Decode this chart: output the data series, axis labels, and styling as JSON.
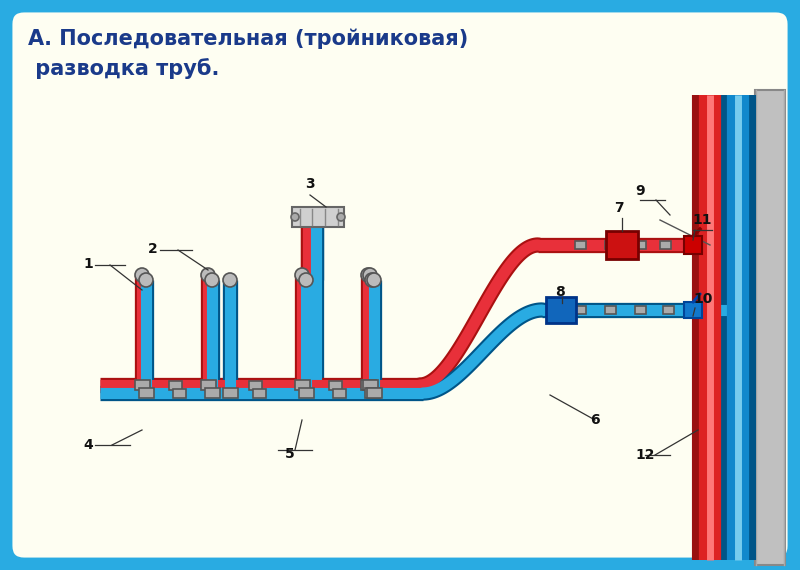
{
  "title_line1": "А. Последовательная (тройниковая)",
  "title_line2": " разводка труб.",
  "bg_color": "#fefef2",
  "outer_border_color": "#29abe2",
  "inner_border_color": "#29abe2",
  "red_pipe_color": "#e8303a",
  "blue_pipe_color": "#29abe2",
  "title_color": "#1a3a8a",
  "wall_red": "#cc2222",
  "wall_blue": "#1188cc",
  "fitting_color": "#999999",
  "label_color": "#111111"
}
